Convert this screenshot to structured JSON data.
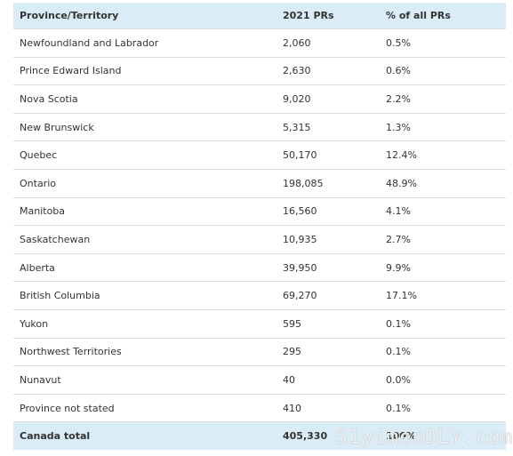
{
  "table": {
    "header": [
      "Province/Territory",
      "2021 PRs",
      "% of all PRs"
    ],
    "rows": [
      [
        "Newfoundland and Labrador",
        "2,060",
        "0.5%"
      ],
      [
        "Prince Edward Island",
        "2,630",
        "0.6%"
      ],
      [
        "Nova Scotia",
        "9,020",
        "2.2%"
      ],
      [
        "New Brunswick",
        "5,315",
        "1.3%"
      ],
      [
        "Quebec",
        "50,170",
        "12.4%"
      ],
      [
        "Ontario",
        "198,085",
        "48.9%"
      ],
      [
        "Manitoba",
        "16,560",
        "4.1%"
      ],
      [
        "Saskatchewan",
        "10,935",
        "2.7%"
      ],
      [
        "Alberta",
        "39,950",
        "9.9%"
      ],
      [
        "British Columbia",
        "69,270",
        "17.1%"
      ],
      [
        "Yukon",
        "595",
        "0.1%"
      ],
      [
        "Northwest Territories",
        "295",
        "0.1%"
      ],
      [
        "Nunavut",
        "40",
        "0.0%"
      ],
      [
        "Province not stated",
        "410",
        "0.1%"
      ]
    ],
    "total": [
      "Canada total",
      "405,330",
      "100%"
    ]
  },
  "watermark": "51yimenDLY.com"
}
